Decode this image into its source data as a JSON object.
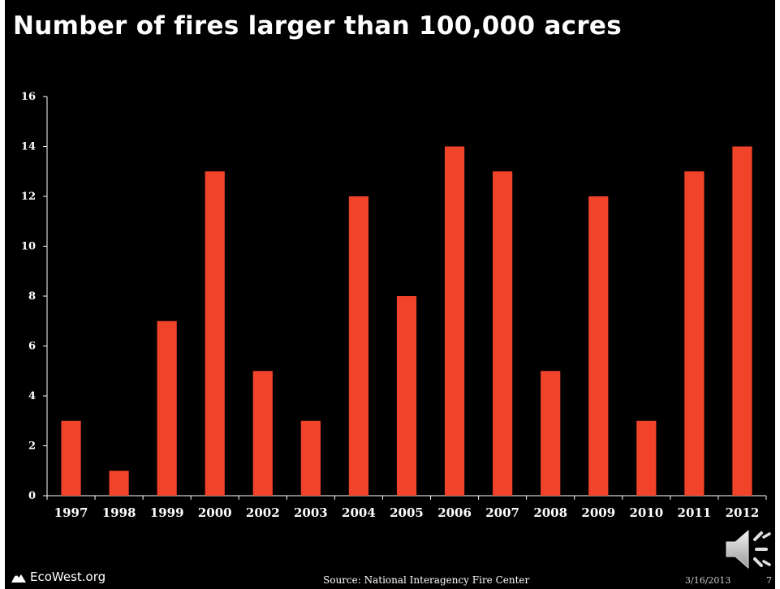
{
  "slide": {
    "title": "Number of fires larger than 100,000 acres",
    "footer": {
      "logo_text": "EcoWest.org",
      "logo_icon": "mountain-icon",
      "source": "Source:  National Interagency Fire Center",
      "date": "3/16/2013",
      "page_number": "7"
    },
    "audio_icon": "speaker-icon"
  },
  "chart_data": {
    "type": "bar",
    "title": "Number of fires larger than 100,000 acres",
    "xlabel": "",
    "ylabel": "",
    "categories": [
      "1997",
      "1998",
      "1999",
      "2000",
      "2002",
      "2003",
      "2004",
      "2005",
      "2006",
      "2007",
      "2008",
      "2009",
      "2010",
      "2011",
      "2012"
    ],
    "values": [
      3,
      1,
      7,
      13,
      5,
      3,
      12,
      8,
      14,
      13,
      5,
      12,
      3,
      13,
      14
    ],
    "ylim": [
      0,
      16
    ],
    "yticks": [
      0,
      2,
      4,
      6,
      8,
      10,
      12,
      14,
      16
    ],
    "grid": false,
    "legend": "none",
    "bar_color": "#f0432a",
    "axis_color": "#ffffff"
  }
}
